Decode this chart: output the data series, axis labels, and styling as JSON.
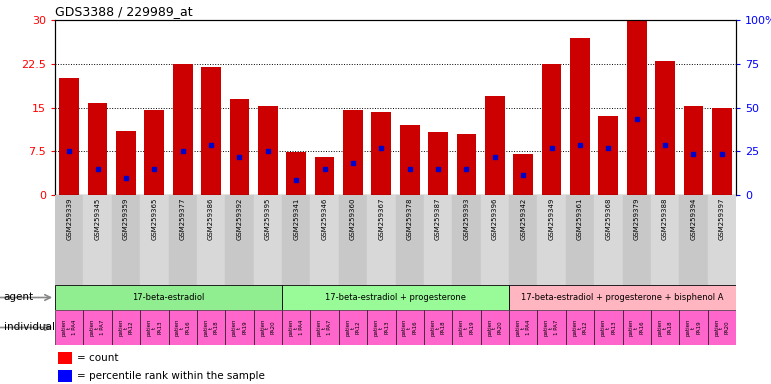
{
  "title": "GDS3388 / 229989_at",
  "gsm_labels": [
    "GSM259339",
    "GSM259345",
    "GSM259359",
    "GSM259365",
    "GSM259377",
    "GSM259386",
    "GSM259392",
    "GSM259395",
    "GSM259341",
    "GSM259346",
    "GSM259360",
    "GSM259367",
    "GSM259378",
    "GSM259387",
    "GSM259393",
    "GSM259396",
    "GSM259342",
    "GSM259349",
    "GSM259361",
    "GSM259368",
    "GSM259379",
    "GSM259388",
    "GSM259394",
    "GSM259397"
  ],
  "count_values": [
    20.0,
    15.8,
    11.0,
    14.5,
    22.5,
    22.0,
    16.5,
    15.2,
    7.3,
    6.5,
    14.5,
    14.3,
    12.0,
    10.8,
    10.5,
    17.0,
    7.0,
    22.5,
    27.0,
    13.5,
    30.0,
    23.0,
    15.2,
    15.0
  ],
  "percentile_values": [
    7.5,
    4.5,
    3.0,
    4.5,
    7.5,
    8.5,
    6.5,
    7.5,
    2.5,
    4.5,
    5.5,
    8.0,
    4.5,
    4.5,
    4.5,
    6.5,
    3.5,
    8.0,
    8.5,
    8.0,
    13.0,
    8.5,
    7.0,
    7.0
  ],
  "left_ylim": [
    0,
    30
  ],
  "right_ylim": [
    0,
    100
  ],
  "left_yticks": [
    0,
    7.5,
    15,
    22.5,
    30
  ],
  "right_yticks": [
    0,
    25,
    50,
    75,
    100
  ],
  "right_yticklabels": [
    "0",
    "25",
    "50",
    "75",
    "100%"
  ],
  "left_yticklabels": [
    "0",
    "7.5",
    "15",
    "22.5",
    "30"
  ],
  "agent_groups": [
    {
      "label": "17-beta-estradiol",
      "start": 0,
      "end": 8,
      "color": "#90EE90"
    },
    {
      "label": "17-beta-estradiol + progesterone",
      "start": 8,
      "end": 16,
      "color": "#98FB98"
    },
    {
      "label": "17-beta-estradiol + progesterone + bisphenol A",
      "start": 16,
      "end": 24,
      "color": "#FFB6C1"
    }
  ],
  "individual_short": [
    "1 PA4",
    "1 PA7",
    "PA12",
    "PA13",
    "PA16",
    "PA18",
    "PA19",
    "PA20",
    "1 PA4",
    "1 PA7",
    "PA12",
    "PA13",
    "PA16",
    "PA18",
    "PA19",
    "PA20",
    "1 PA4",
    "1 PA7",
    "PA12",
    "PA13",
    "PA16",
    "PA18",
    "PA19",
    "PA20"
  ],
  "bar_color": "#CC0000",
  "percentile_color": "#0000CC",
  "individual_bg_color": "#FF66CC"
}
